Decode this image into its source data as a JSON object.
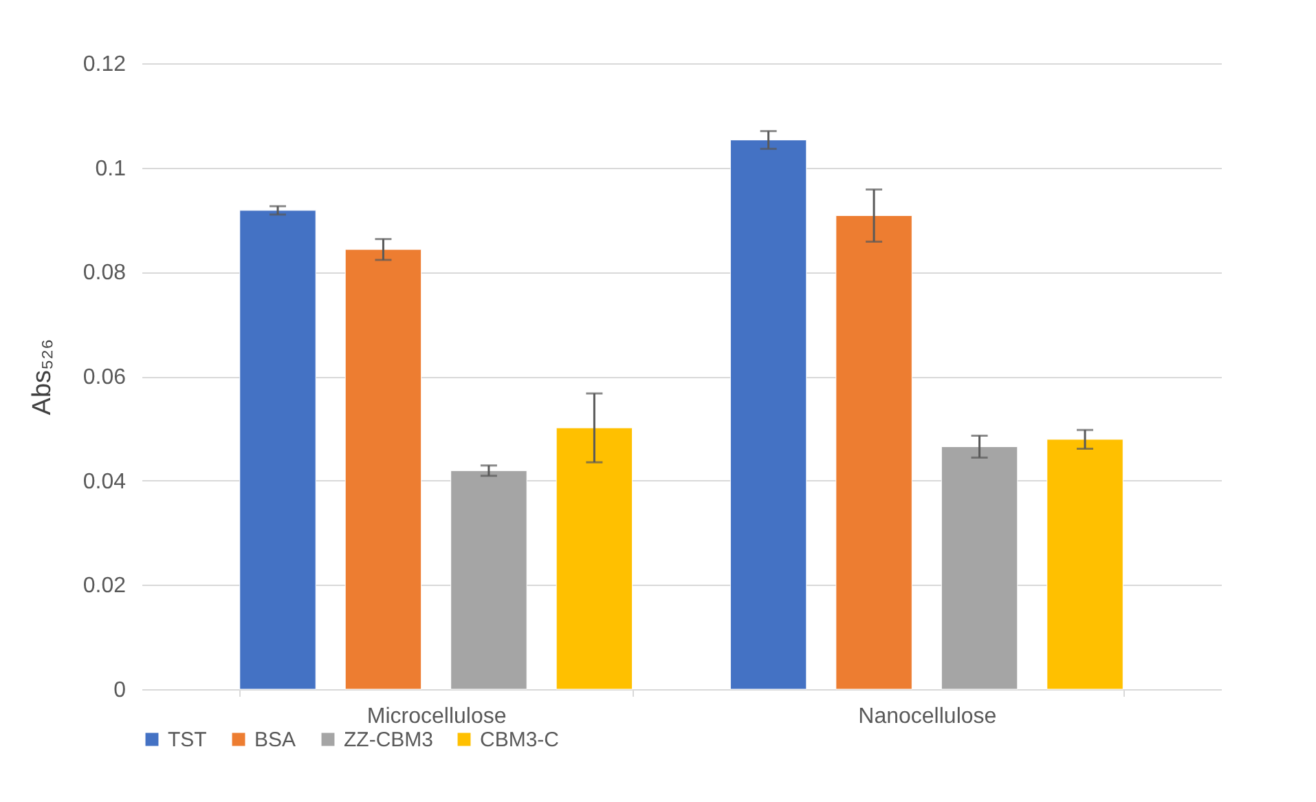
{
  "chart_data": {
    "type": "bar",
    "ylabel": "Abs₅₂₆",
    "categories": [
      "Microcellulose",
      "Nanocellulose"
    ],
    "series": [
      {
        "name": "TST",
        "color": "#4472c4",
        "values": [
          0.0918,
          0.1053
        ],
        "errors": [
          0.0008,
          0.0017
        ]
      },
      {
        "name": "BSA",
        "color": "#ed7d31",
        "values": [
          0.0843,
          0.0908
        ],
        "errors": [
          0.002,
          0.005
        ]
      },
      {
        "name": "ZZ-CBM3",
        "color": "#a5a5a5",
        "values": [
          0.0419,
          0.0465
        ],
        "errors": [
          0.001,
          0.0021
        ]
      },
      {
        "name": "CBM3-C",
        "color": "#ffc000",
        "values": [
          0.0501,
          0.0479
        ],
        "errors": [
          0.0066,
          0.0018
        ]
      }
    ],
    "ylim": [
      0,
      0.12
    ],
    "yticks": [
      0,
      0.02,
      0.04,
      0.06,
      0.08,
      0.1,
      0.12
    ],
    "grid": "y",
    "legend": "bottom"
  }
}
